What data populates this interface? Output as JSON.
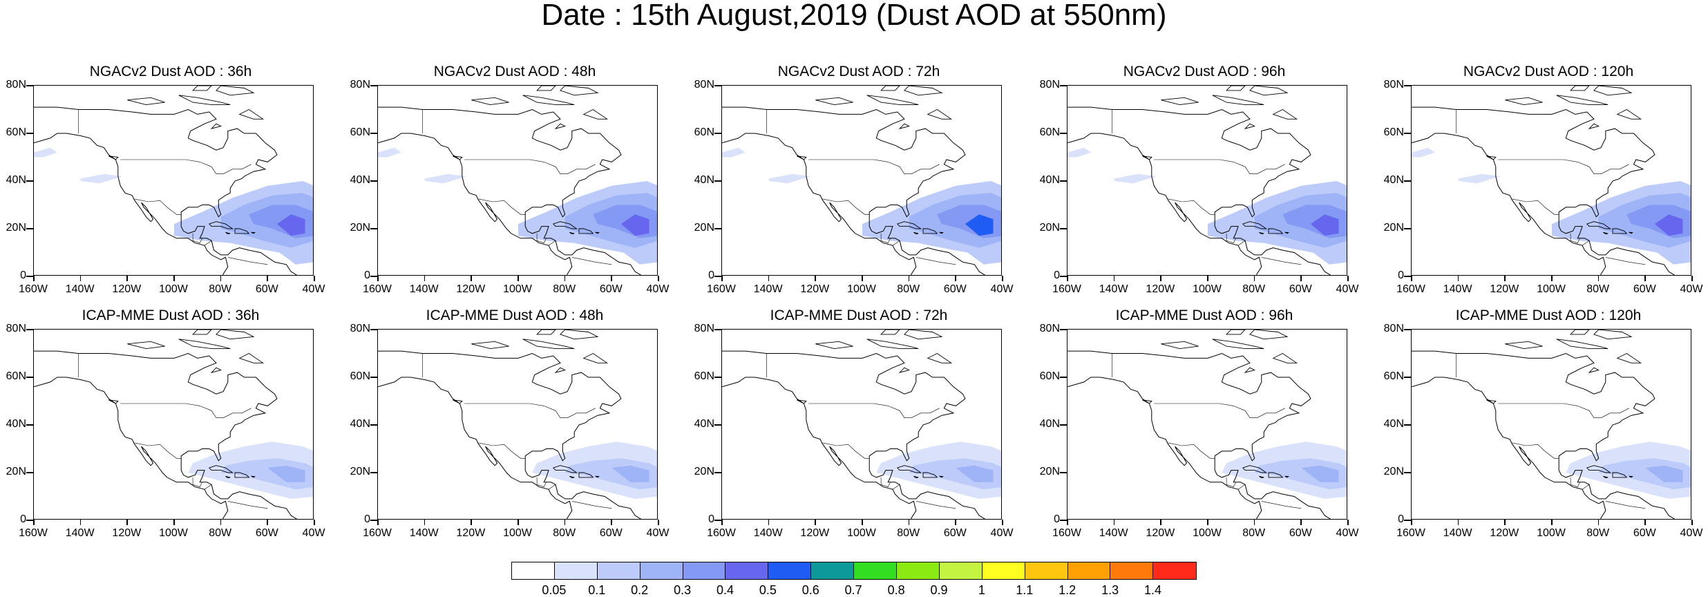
{
  "title": "Date : 15th August,2019 (Dust AOD at 550nm)",
  "map": {
    "lat_ticks": [
      "80N",
      "60N",
      "40N",
      "20N",
      "0"
    ],
    "lat_values": [
      80,
      60,
      40,
      20,
      0
    ],
    "lon_ticks": [
      "160W",
      "140W",
      "120W",
      "100W",
      "80W",
      "60W",
      "40W"
    ],
    "lon_values": [
      -160,
      -140,
      -120,
      -100,
      -80,
      -60,
      -40
    ]
  },
  "panels": [
    {
      "title": "NGACv2 Dust AOD : 36h",
      "model": "NGACv2",
      "lead": "36h"
    },
    {
      "title": "NGACv2 Dust AOD : 48h",
      "model": "NGACv2",
      "lead": "48h"
    },
    {
      "title": "NGACv2 Dust AOD : 72h",
      "model": "NGACv2",
      "lead": "72h"
    },
    {
      "title": "NGACv2 Dust AOD : 96h",
      "model": "NGACv2",
      "lead": "96h"
    },
    {
      "title": "NGACv2 Dust AOD : 120h",
      "model": "NGACv2",
      "lead": "120h"
    },
    {
      "title": "ICAP-MME Dust AOD : 36h",
      "model": "ICAP-MME",
      "lead": "36h"
    },
    {
      "title": "ICAP-MME Dust AOD : 48h",
      "model": "ICAP-MME",
      "lead": "48h"
    },
    {
      "title": "ICAP-MME Dust AOD : 72h",
      "model": "ICAP-MME",
      "lead": "72h"
    },
    {
      "title": "ICAP-MME Dust AOD : 96h",
      "model": "ICAP-MME",
      "lead": "96h"
    },
    {
      "title": "ICAP-MME Dust AOD : 120h",
      "model": "ICAP-MME",
      "lead": "120h"
    }
  ],
  "colorbar": {
    "labels": [
      "0.05",
      "0.1",
      "0.2",
      "0.3",
      "0.4",
      "0.5",
      "0.6",
      "0.7",
      "0.8",
      "0.9",
      "1",
      "1.1",
      "1.2",
      "1.3",
      "1.4"
    ],
    "colors": [
      "#ffffff",
      "#d9e1fb",
      "#bccbf9",
      "#9fb3f7",
      "#8399f3",
      "#6766ee",
      "#1f5cf3",
      "#0d9999",
      "#33dd22",
      "#8aea11",
      "#c5f341",
      "#ffff22",
      "#ffc60f",
      "#ffa005",
      "#ff7a0a",
      "#ff2a1a"
    ]
  }
}
